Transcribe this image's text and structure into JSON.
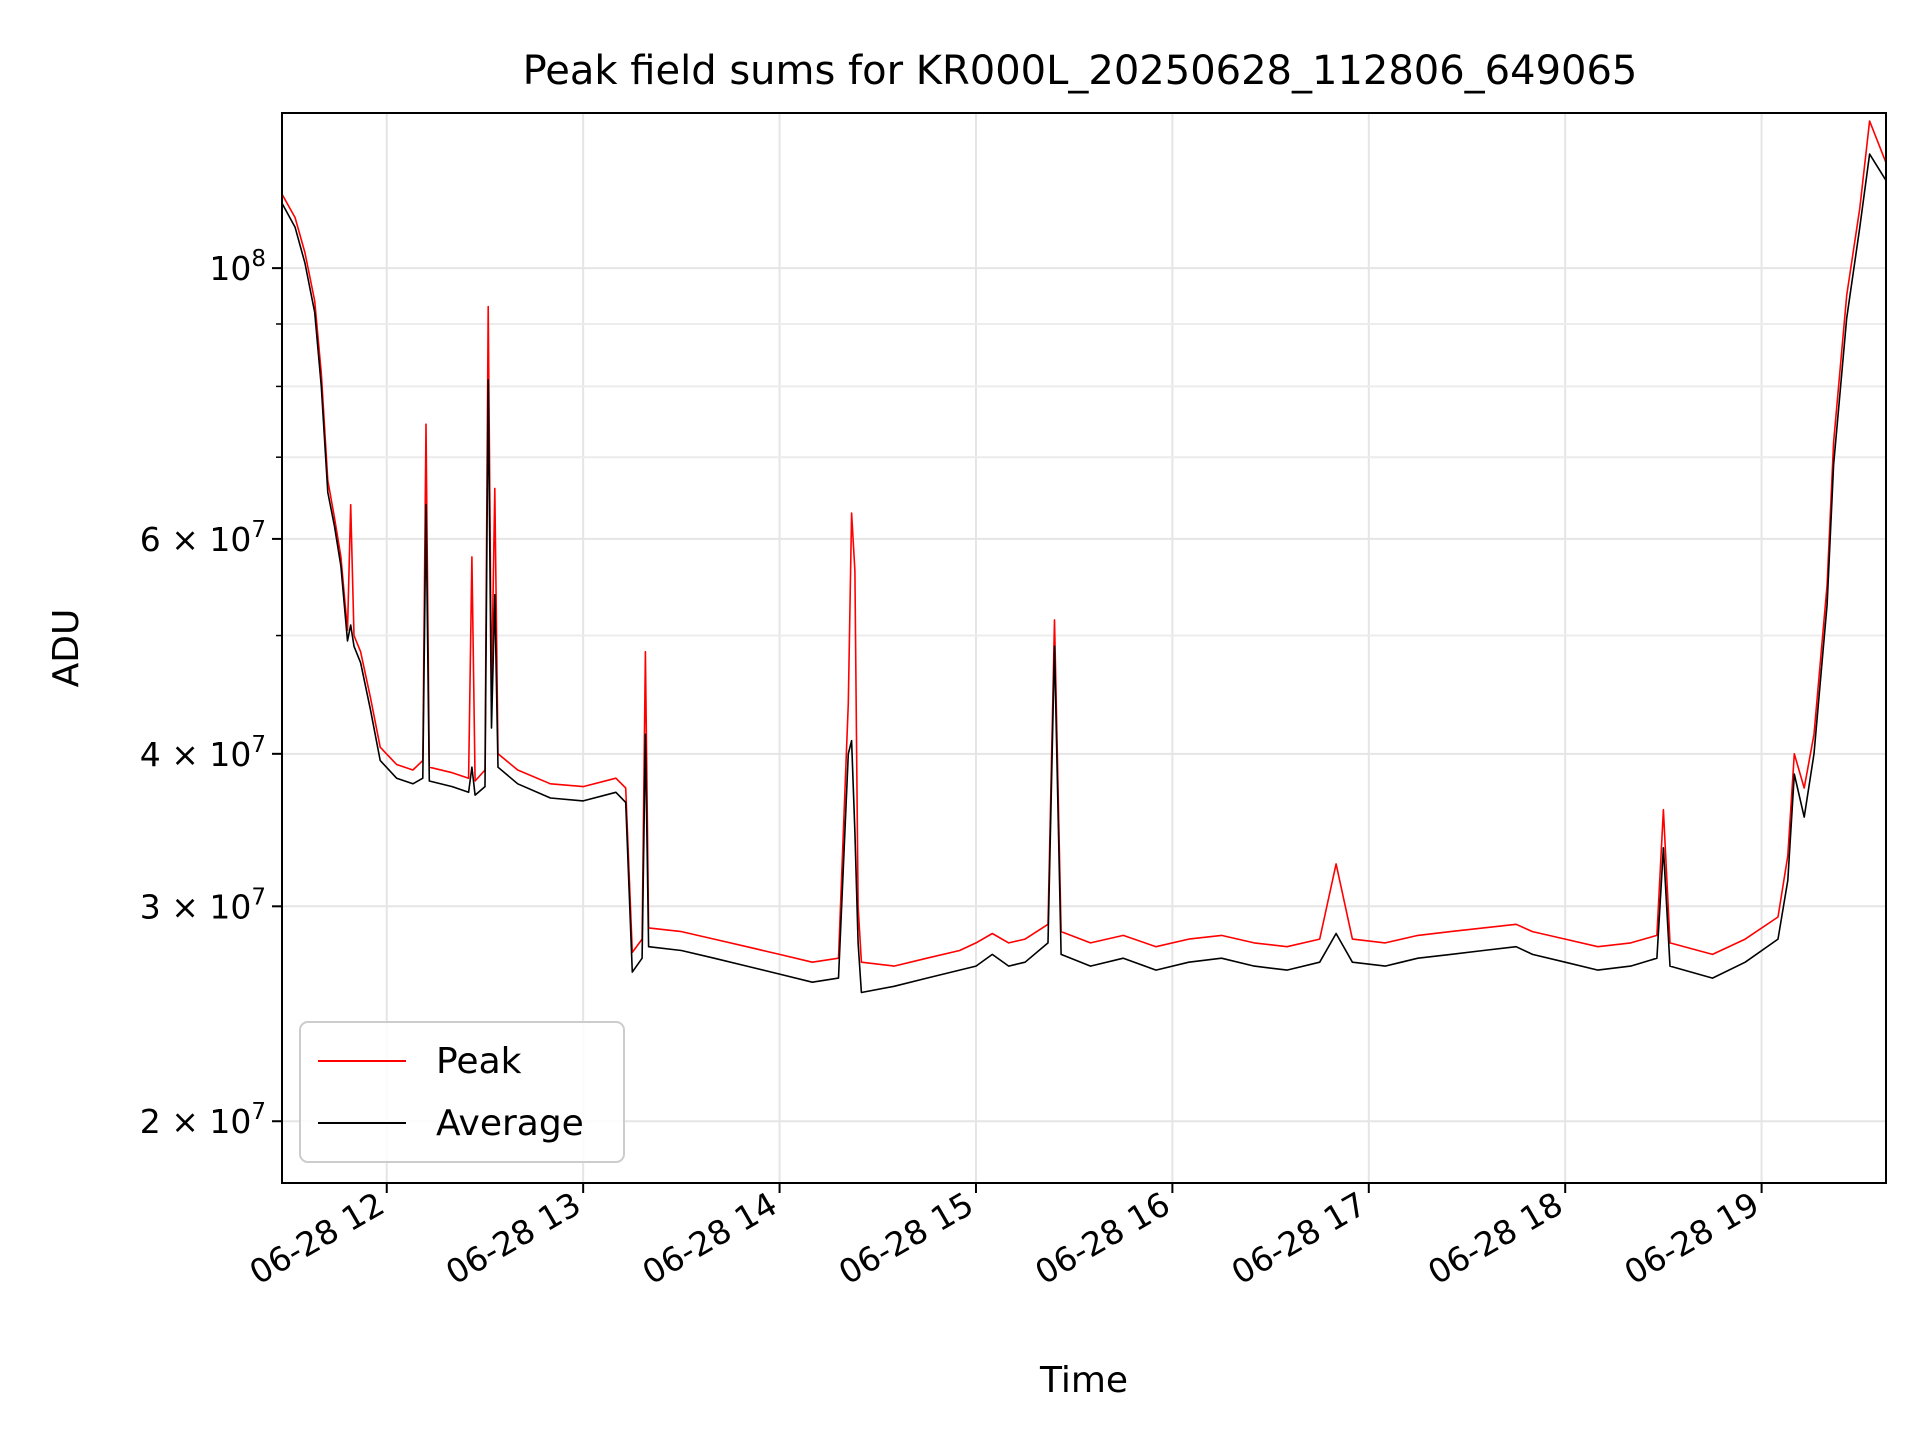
{
  "chart_data": {
    "type": "line",
    "title": "Peak field sums for KR000L_20250628_112806_649065",
    "xlabel": "Time",
    "ylabel": "ADU",
    "y_scale": "log",
    "xlim": [
      "2025-06-28 11:28",
      "2025-06-28 19:38"
    ],
    "ylim": [
      17800000,
      134000000
    ],
    "grid": true,
    "legend_position": "lower-left",
    "x_ticks": [
      {
        "value": "2025-06-28 12:00",
        "label": "06-28 12"
      },
      {
        "value": "2025-06-28 13:00",
        "label": "06-28 13"
      },
      {
        "value": "2025-06-28 14:00",
        "label": "06-28 14"
      },
      {
        "value": "2025-06-28 15:00",
        "label": "06-28 15"
      },
      {
        "value": "2025-06-28 16:00",
        "label": "06-28 16"
      },
      {
        "value": "2025-06-28 17:00",
        "label": "06-28 17"
      },
      {
        "value": "2025-06-28 18:00",
        "label": "06-28 18"
      },
      {
        "value": "2025-06-28 19:00",
        "label": "06-28 19"
      }
    ],
    "y_major_ticks": [
      {
        "value": 20000000,
        "mant": "2",
        "exp": "7"
      },
      {
        "value": 30000000,
        "mant": "3",
        "exp": "7"
      },
      {
        "value": 40000000,
        "mant": "4",
        "exp": "7"
      },
      {
        "value": 60000000,
        "mant": "6",
        "exp": "7"
      },
      {
        "value": 100000000,
        "mant": "",
        "exp": "8"
      }
    ],
    "y_minor_ticks": [
      50000000,
      70000000,
      80000000,
      90000000
    ],
    "series": [
      {
        "name": "Peak",
        "color": "#ff0000",
        "points": [
          [
            "2025-06-28 11:28",
            115000000
          ],
          [
            "2025-06-28 11:32",
            110000000
          ],
          [
            "2025-06-28 11:35",
            103000000
          ],
          [
            "2025-06-28 11:38",
            94000000
          ],
          [
            "2025-06-28 11:40",
            82000000
          ],
          [
            "2025-06-28 11:42",
            67000000
          ],
          [
            "2025-06-28 11:44",
            62500000
          ],
          [
            "2025-06-28 11:46",
            58000000
          ],
          [
            "2025-06-28 11:48",
            50500000
          ],
          [
            "2025-06-28 11:49",
            64000000
          ],
          [
            "2025-06-28 11:50",
            50000000
          ],
          [
            "2025-06-28 11:52",
            48500000
          ],
          [
            "2025-06-28 11:55",
            44500000
          ],
          [
            "2025-06-28 11:58",
            40500000
          ],
          [
            "2025-06-28 12:03",
            39200000
          ],
          [
            "2025-06-28 12:08",
            38800000
          ],
          [
            "2025-06-28 12:11",
            39500000
          ],
          [
            "2025-06-28 12:12",
            74500000
          ],
          [
            "2025-06-28 12:13",
            39000000
          ],
          [
            "2025-06-28 12:20",
            38600000
          ],
          [
            "2025-06-28 12:25",
            38200000
          ],
          [
            "2025-06-28 12:26",
            58000000
          ],
          [
            "2025-06-28 12:27",
            38000000
          ],
          [
            "2025-06-28 12:30",
            38800000
          ],
          [
            "2025-06-28 12:31",
            93000000
          ],
          [
            "2025-06-28 12:32",
            45000000
          ],
          [
            "2025-06-28 12:33",
            66000000
          ],
          [
            "2025-06-28 12:34",
            40000000
          ],
          [
            "2025-06-28 12:40",
            38800000
          ],
          [
            "2025-06-28 12:50",
            37800000
          ],
          [
            "2025-06-28 13:00",
            37600000
          ],
          [
            "2025-06-28 13:10",
            38200000
          ],
          [
            "2025-06-28 13:13",
            37500000
          ],
          [
            "2025-06-28 13:15",
            27500000
          ],
          [
            "2025-06-28 13:18",
            28200000
          ],
          [
            "2025-06-28 13:19",
            48500000
          ],
          [
            "2025-06-28 13:20",
            28800000
          ],
          [
            "2025-06-28 13:30",
            28600000
          ],
          [
            "2025-06-28 13:40",
            28200000
          ],
          [
            "2025-06-28 13:50",
            27800000
          ],
          [
            "2025-06-28 14:00",
            27400000
          ],
          [
            "2025-06-28 14:10",
            27000000
          ],
          [
            "2025-06-28 14:18",
            27200000
          ],
          [
            "2025-06-28 14:21",
            44000000
          ],
          [
            "2025-06-28 14:22",
            63000000
          ],
          [
            "2025-06-28 14:23",
            56500000
          ],
          [
            "2025-06-28 14:24",
            30000000
          ],
          [
            "2025-06-28 14:25",
            27000000
          ],
          [
            "2025-06-28 14:35",
            26800000
          ],
          [
            "2025-06-28 14:45",
            27200000
          ],
          [
            "2025-06-28 14:55",
            27600000
          ],
          [
            "2025-06-28 15:00",
            28000000
          ],
          [
            "2025-06-28 15:05",
            28500000
          ],
          [
            "2025-06-28 15:10",
            28000000
          ],
          [
            "2025-06-28 15:15",
            28200000
          ],
          [
            "2025-06-28 15:22",
            29000000
          ],
          [
            "2025-06-28 15:24",
            51500000
          ],
          [
            "2025-06-28 15:26",
            28600000
          ],
          [
            "2025-06-28 15:35",
            28000000
          ],
          [
            "2025-06-28 15:45",
            28400000
          ],
          [
            "2025-06-28 15:55",
            27800000
          ],
          [
            "2025-06-28 16:05",
            28200000
          ],
          [
            "2025-06-28 16:15",
            28400000
          ],
          [
            "2025-06-28 16:25",
            28000000
          ],
          [
            "2025-06-28 16:35",
            27800000
          ],
          [
            "2025-06-28 16:45",
            28200000
          ],
          [
            "2025-06-28 16:50",
            32500000
          ],
          [
            "2025-06-28 16:55",
            28200000
          ],
          [
            "2025-06-28 17:05",
            28000000
          ],
          [
            "2025-06-28 17:15",
            28400000
          ],
          [
            "2025-06-28 17:25",
            28600000
          ],
          [
            "2025-06-28 17:35",
            28800000
          ],
          [
            "2025-06-28 17:45",
            29000000
          ],
          [
            "2025-06-28 17:50",
            28600000
          ],
          [
            "2025-06-28 18:00",
            28200000
          ],
          [
            "2025-06-28 18:10",
            27800000
          ],
          [
            "2025-06-28 18:20",
            28000000
          ],
          [
            "2025-06-28 18:28",
            28400000
          ],
          [
            "2025-06-28 18:30",
            36000000
          ],
          [
            "2025-06-28 18:32",
            28000000
          ],
          [
            "2025-06-28 18:45",
            27400000
          ],
          [
            "2025-06-28 18:55",
            28200000
          ],
          [
            "2025-06-28 19:05",
            29400000
          ],
          [
            "2025-06-28 19:08",
            33000000
          ],
          [
            "2025-06-28 19:10",
            40000000
          ],
          [
            "2025-06-28 19:13",
            37500000
          ],
          [
            "2025-06-28 19:16",
            41500000
          ],
          [
            "2025-06-28 19:20",
            55000000
          ],
          [
            "2025-06-28 19:22",
            72000000
          ],
          [
            "2025-06-28 19:26",
            95000000
          ],
          [
            "2025-06-28 19:30",
            112000000
          ],
          [
            "2025-06-28 19:33",
            132000000
          ],
          [
            "2025-06-28 19:38",
            122000000
          ]
        ]
      },
      {
        "name": "Average",
        "color": "#000000",
        "points": [
          [
            "2025-06-28 11:28",
            113000000
          ],
          [
            "2025-06-28 11:32",
            108000000
          ],
          [
            "2025-06-28 11:35",
            101000000
          ],
          [
            "2025-06-28 11:38",
            92000000
          ],
          [
            "2025-06-28 11:40",
            80000000
          ],
          [
            "2025-06-28 11:42",
            65500000
          ],
          [
            "2025-06-28 11:44",
            61500000
          ],
          [
            "2025-06-28 11:46",
            57000000
          ],
          [
            "2025-06-28 11:48",
            49500000
          ],
          [
            "2025-06-28 11:49",
            51000000
          ],
          [
            "2025-06-28 11:50",
            49000000
          ],
          [
            "2025-06-28 11:52",
            47500000
          ],
          [
            "2025-06-28 11:55",
            43500000
          ],
          [
            "2025-06-28 11:58",
            39500000
          ],
          [
            "2025-06-28 12:03",
            38200000
          ],
          [
            "2025-06-28 12:08",
            37800000
          ],
          [
            "2025-06-28 12:11",
            38200000
          ],
          [
            "2025-06-28 12:12",
            64000000
          ],
          [
            "2025-06-28 12:13",
            38000000
          ],
          [
            "2025-06-28 12:20",
            37600000
          ],
          [
            "2025-06-28 12:25",
            37200000
          ],
          [
            "2025-06-28 12:26",
            39000000
          ],
          [
            "2025-06-28 12:27",
            37000000
          ],
          [
            "2025-06-28 12:30",
            37600000
          ],
          [
            "2025-06-28 12:31",
            81000000
          ],
          [
            "2025-06-28 12:32",
            42000000
          ],
          [
            "2025-06-28 12:33",
            54000000
          ],
          [
            "2025-06-28 12:34",
            39000000
          ],
          [
            "2025-06-28 12:40",
            37800000
          ],
          [
            "2025-06-28 12:50",
            36800000
          ],
          [
            "2025-06-28 13:00",
            36600000
          ],
          [
            "2025-06-28 13:10",
            37200000
          ],
          [
            "2025-06-28 13:13",
            36500000
          ],
          [
            "2025-06-28 13:15",
            26500000
          ],
          [
            "2025-06-28 13:18",
            27200000
          ],
          [
            "2025-06-28 13:19",
            41500000
          ],
          [
            "2025-06-28 13:20",
            27800000
          ],
          [
            "2025-06-28 13:30",
            27600000
          ],
          [
            "2025-06-28 13:40",
            27200000
          ],
          [
            "2025-06-28 13:50",
            26800000
          ],
          [
            "2025-06-28 14:00",
            26400000
          ],
          [
            "2025-06-28 14:10",
            26000000
          ],
          [
            "2025-06-28 14:18",
            26200000
          ],
          [
            "2025-06-28 14:21",
            40000000
          ],
          [
            "2025-06-28 14:22",
            41000000
          ],
          [
            "2025-06-28 14:23",
            34500000
          ],
          [
            "2025-06-28 14:24",
            28000000
          ],
          [
            "2025-06-28 14:25",
            25500000
          ],
          [
            "2025-06-28 14:35",
            25800000
          ],
          [
            "2025-06-28 14:45",
            26200000
          ],
          [
            "2025-06-28 14:55",
            26600000
          ],
          [
            "2025-06-28 15:00",
            26800000
          ],
          [
            "2025-06-28 15:05",
            27400000
          ],
          [
            "2025-06-28 15:10",
            26800000
          ],
          [
            "2025-06-28 15:15",
            27000000
          ],
          [
            "2025-06-28 15:22",
            28000000
          ],
          [
            "2025-06-28 15:24",
            49000000
          ],
          [
            "2025-06-28 15:26",
            27400000
          ],
          [
            "2025-06-28 15:35",
            26800000
          ],
          [
            "2025-06-28 15:45",
            27200000
          ],
          [
            "2025-06-28 15:55",
            26600000
          ],
          [
            "2025-06-28 16:05",
            27000000
          ],
          [
            "2025-06-28 16:15",
            27200000
          ],
          [
            "2025-06-28 16:25",
            26800000
          ],
          [
            "2025-06-28 16:35",
            26600000
          ],
          [
            "2025-06-28 16:45",
            27000000
          ],
          [
            "2025-06-28 16:50",
            28500000
          ],
          [
            "2025-06-28 16:55",
            27000000
          ],
          [
            "2025-06-28 17:05",
            26800000
          ],
          [
            "2025-06-28 17:15",
            27200000
          ],
          [
            "2025-06-28 17:25",
            27400000
          ],
          [
            "2025-06-28 17:35",
            27600000
          ],
          [
            "2025-06-28 17:45",
            27800000
          ],
          [
            "2025-06-28 17:50",
            27400000
          ],
          [
            "2025-06-28 18:00",
            27000000
          ],
          [
            "2025-06-28 18:10",
            26600000
          ],
          [
            "2025-06-28 18:20",
            26800000
          ],
          [
            "2025-06-28 18:28",
            27200000
          ],
          [
            "2025-06-28 18:30",
            33500000
          ],
          [
            "2025-06-28 18:32",
            26800000
          ],
          [
            "2025-06-28 18:45",
            26200000
          ],
          [
            "2025-06-28 18:55",
            27000000
          ],
          [
            "2025-06-28 19:05",
            28200000
          ],
          [
            "2025-06-28 19:08",
            31500000
          ],
          [
            "2025-06-28 19:10",
            38500000
          ],
          [
            "2025-06-28 19:13",
            35500000
          ],
          [
            "2025-06-28 19:16",
            40000000
          ],
          [
            "2025-06-28 19:20",
            53000000
          ],
          [
            "2025-06-28 19:22",
            69000000
          ],
          [
            "2025-06-28 19:26",
            91000000
          ],
          [
            "2025-06-28 19:30",
            108000000
          ],
          [
            "2025-06-28 19:33",
            124000000
          ],
          [
            "2025-06-28 19:38",
            118000000
          ]
        ]
      }
    ]
  }
}
